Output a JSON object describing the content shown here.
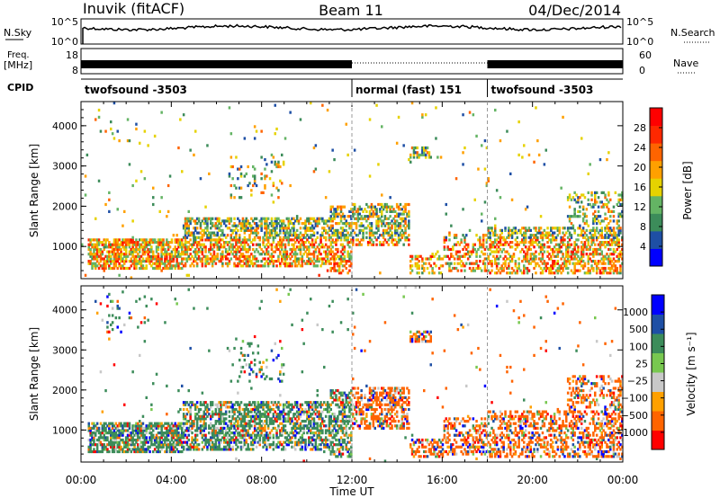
{
  "header": {
    "station": "Inuvik (fitACF)",
    "beam": "Beam 11",
    "date": "04/Dec/2014"
  },
  "top_panels": {
    "nsky_label": "N.Sky",
    "nsky_ticks": [
      "10^5",
      "10^0"
    ],
    "nsearch_label": "N.Search",
    "nsearch_ticks": [
      "10^5",
      "10^0"
    ],
    "freq_label": "Freq.",
    "freq_unit": "[MHz]",
    "freq_ticks": [
      "18",
      "8"
    ],
    "nave_label": "Nave",
    "nave_ticks": [
      "60",
      "0"
    ],
    "cpid_label": "CPID"
  },
  "cpid_segments": [
    {
      "label": "twofsound -3503",
      "start_hour": 0
    },
    {
      "label": "normal (fast) 151",
      "start_hour": 12
    },
    {
      "label": "twofsound -3503",
      "start_hour": 18
    }
  ],
  "colors": {
    "power_scale": [
      "#0000ff",
      "#1e4fa5",
      "#3c8c5a",
      "#64b464",
      "#e6d200",
      "#ffa000",
      "#ff6400",
      "#ff2800",
      "#ff0000"
    ],
    "velocity_scale": [
      "#ff0000",
      "#ff6400",
      "#ffa000",
      "#c8c8c8",
      "#78c850",
      "#3c8c5a",
      "#1e4fa5",
      "#0000ff"
    ]
  },
  "chart_data": [
    {
      "type": "heatmap",
      "name": "power-panel",
      "ylabel": "Slant Range [km]",
      "xlim_hours": [
        0,
        24
      ],
      "ylim": [
        200,
        4600
      ],
      "yticks": [
        1000,
        2000,
        3000,
        4000
      ],
      "colorbar": {
        "label": "Power [dB]",
        "ticks": [
          "28",
          "24",
          "20",
          "16",
          "12",
          "8",
          "4"
        ],
        "range": [
          0,
          32
        ]
      }
    },
    {
      "type": "heatmap",
      "name": "velocity-panel",
      "ylabel": "Slant Range [km]",
      "xlabel": "Time UT",
      "xlim_hours": [
        0,
        24
      ],
      "ylim": [
        200,
        4600
      ],
      "yticks": [
        1000,
        2000,
        3000,
        4000
      ],
      "xticks": [
        "00:00",
        "04:00",
        "08:00",
        "12:00",
        "16:00",
        "20:00",
        "00:00"
      ],
      "colorbar": {
        "label": "Velocity [m s⁻¹]",
        "ticks": [
          "1000",
          "500",
          "100",
          "25",
          "−25",
          "−100",
          "−500",
          "−1000"
        ]
      }
    }
  ]
}
